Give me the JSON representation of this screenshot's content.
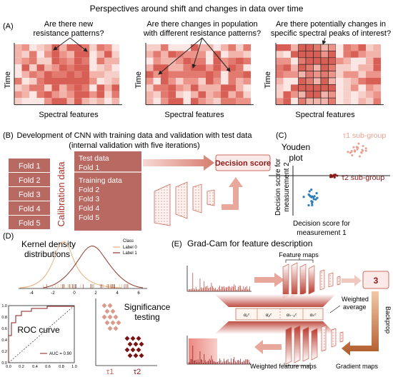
{
  "title": "Perspectives around shift and changes in data over time",
  "panelA": {
    "label": "(A)",
    "heatmaps": [
      {
        "question_line1": "Are there new",
        "question_line2": "resistance patterns?"
      },
      {
        "question_line1": "Are there changes in population",
        "question_line2": "with different resistance patterns?"
      },
      {
        "question_line1": "Are there potentially changes in",
        "question_line2": "specific spectral peaks of interest?"
      }
    ],
    "ylabel": "Time",
    "xlabel": "Spectral features"
  },
  "panelB": {
    "label": "(B)",
    "heading_line1": "Development of CNN with training data and validation with test data",
    "heading_line2": "(internal validation with five iterations)",
    "folds": [
      "Fold 1",
      "Fold 2",
      "Fold 3",
      "Fold 4",
      "Fold 5"
    ],
    "calibration_label": "Calibration data",
    "test_title": "Test data",
    "test_fold": "Fold 1",
    "training_title": "Training data",
    "training_folds": [
      "Fold 2",
      "Fold 3",
      "Fold 4",
      "Fold 5"
    ],
    "decision_score": "Decision score"
  },
  "panelC": {
    "label": "(C)",
    "title_line1": "Youden",
    "title_line2": "plot",
    "group1": "τ1 sub-group",
    "group2": "τ2 sub-group",
    "ylabel_line1": "Decision score for",
    "ylabel_line2": "measurement 2",
    "xlabel_line1": "Decision score for",
    "xlabel_line2": "measurement 1",
    "colors": {
      "group1": "#e8a090",
      "group2": "#8b1a1a",
      "other": "#2e7fb8"
    }
  },
  "panelD": {
    "label": "(D)",
    "kde_title_line1": "Kernel density",
    "kde_title_line2": "distributions",
    "legend_title": "Class",
    "legend_items": [
      "Label 0",
      "Label 1"
    ],
    "kde_ticks": [
      "-4",
      "-2",
      "0",
      "2",
      "4",
      "6"
    ],
    "roc_title": "ROC curve",
    "roc_legend": "AUC = 0.90",
    "roc_ticks": [
      "0.0",
      "0.2",
      "0.4",
      "0.6",
      "0.8",
      "1.0"
    ],
    "significance_line1": "Significance",
    "significance_line2": "testing",
    "groups": [
      "τ1",
      "τ2"
    ]
  },
  "panelE": {
    "label": "(E)",
    "title": "Grad-Cam for feature description",
    "feature_maps": "Feature maps",
    "weighted_average_line1": "Weighted",
    "weighted_average_line2": "average",
    "class_output": "3",
    "backprop": "Backprop",
    "weights": [
      "α₁ᶜ",
      "α₂ᶜ",
      "αₖ₋₁ᶜ",
      "αₖᶜ"
    ],
    "gradient_maps": "Gradient maps",
    "weighted_feature_maps": "Weighted feature maps"
  }
}
